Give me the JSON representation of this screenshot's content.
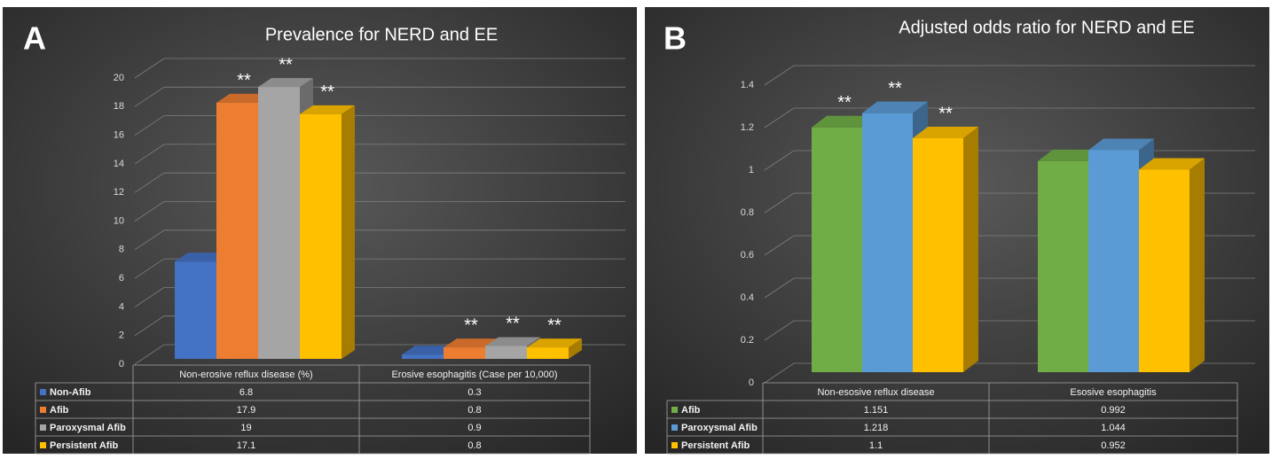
{
  "chart_data": [
    {
      "type": "bar",
      "panel_label": "A",
      "title": "Prevalence for NERD and EE",
      "categories": [
        "Non-erosive reflux disease (%)",
        "Erosive esophagitis (Case per 10,000)"
      ],
      "series": [
        {
          "name": "Non-Afib",
          "color": "#4472c4",
          "values": [
            6.8,
            0.3
          ]
        },
        {
          "name": "Afib",
          "color": "#ed7d31",
          "values": [
            17.9,
            0.8
          ],
          "significance": [
            "**",
            "**"
          ]
        },
        {
          "name": "Paroxysmal Afib",
          "color": "#a5a5a5",
          "values": [
            19,
            0.9
          ],
          "significance": [
            "**",
            "**"
          ]
        },
        {
          "name": "Persistent Afib",
          "color": "#ffc000",
          "values": [
            17.1,
            0.8
          ],
          "significance": [
            "**",
            "**"
          ]
        }
      ],
      "ylim": [
        0,
        20
      ],
      "yticks": [
        0,
        2,
        4,
        6,
        8,
        10,
        12,
        14,
        16,
        18,
        20
      ],
      "grid": true
    },
    {
      "type": "bar",
      "panel_label": "B",
      "title": "Adjusted odds ratio for NERD and EE",
      "categories": [
        "Non-esosive reflux disease",
        "Esosive esophagitis"
      ],
      "series": [
        {
          "name": "Afib",
          "color": "#70ad47",
          "values": [
            1.151,
            0.992
          ],
          "significance": [
            "**",
            null
          ]
        },
        {
          "name": "Paroxysmal Afib",
          "color": "#5b9bd5",
          "values": [
            1.218,
            1.044
          ],
          "significance": [
            "**",
            null
          ]
        },
        {
          "name": "Persistent Afib",
          "color": "#ffc000",
          "values": [
            1.1,
            0.952
          ],
          "significance": [
            "**",
            null
          ]
        }
      ],
      "ylim": [
        0,
        1.4
      ],
      "yticks": [
        0,
        0.2,
        0.4,
        0.6,
        0.8,
        1,
        1.2,
        1.4
      ],
      "grid": true
    }
  ]
}
